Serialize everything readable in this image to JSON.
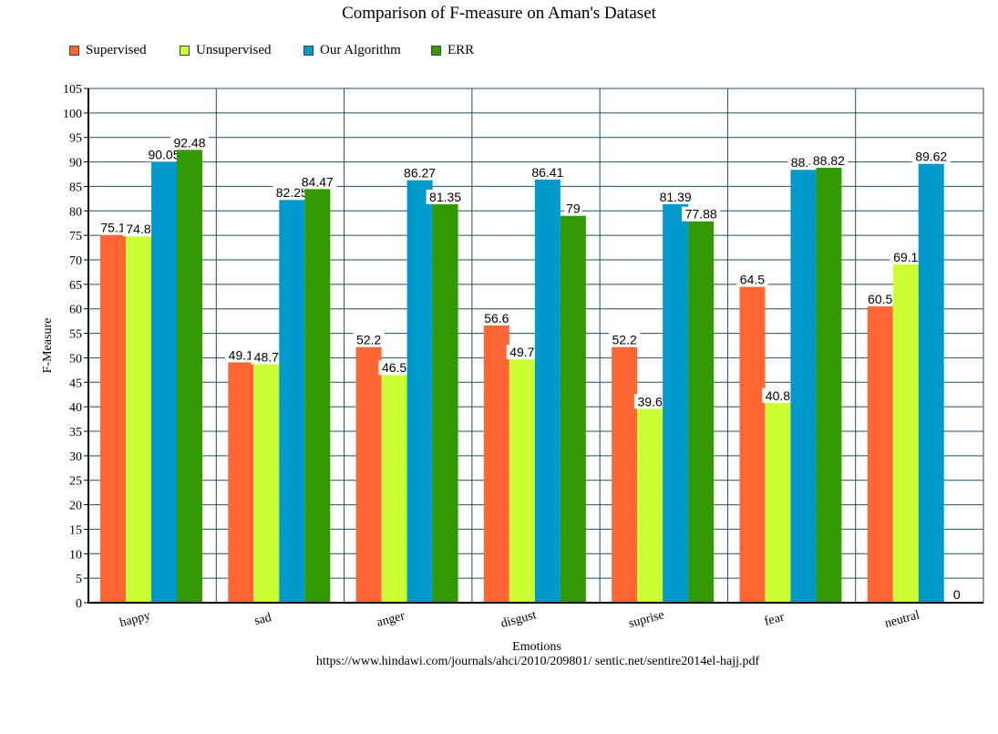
{
  "chart_data": {
    "type": "bar",
    "title": "Comparison of F-measure on Aman's Dataset",
    "xlabel": "Emotions",
    "ylabel": "F-Measure",
    "ylim": [
      0,
      105
    ],
    "ytick_step": 5,
    "categories": [
      "happy",
      "sad",
      "anger",
      "disgust",
      "suprise",
      "fear",
      "neutral"
    ],
    "series": [
      {
        "name": "Supervised",
        "color": "#ff6633",
        "values": [
          75.1,
          49.1,
          52.2,
          56.6,
          52.2,
          64.5,
          60.5
        ],
        "labels": [
          "75.1",
          "49.1",
          "52.2",
          "56.6",
          "52.2",
          "64.5",
          "60.5"
        ]
      },
      {
        "name": "Unsupervised",
        "color": "#ccff33",
        "values": [
          74.8,
          48.7,
          46.5,
          49.7,
          39.6,
          40.8,
          69.1
        ],
        "labels": [
          "74.8",
          "48.7",
          "46.5",
          "49.7",
          "39.6",
          "40.8",
          "69.1"
        ]
      },
      {
        "name": "Our Algorithm",
        "color": "#0099cc",
        "values": [
          90.05,
          82.25,
          86.27,
          86.41,
          81.39,
          88.4,
          89.62
        ],
        "labels": [
          "90.05",
          "82.25",
          "86.27",
          "86.41",
          "81.39",
          "88.4",
          "89.62"
        ]
      },
      {
        "name": "ERR",
        "color": "#339900",
        "values": [
          92.48,
          84.47,
          81.35,
          79,
          77.88,
          88.82,
          0
        ],
        "labels": [
          "92.48",
          "84.47",
          "81.35",
          "79",
          "77.88",
          "88.82",
          "0"
        ]
      }
    ],
    "grid": true,
    "legend_position": "top-left"
  },
  "source_note": "https://www.hindawi.com/journals/ahci/2010/209801/   sentic.net/sentire2014el-hajj.pdf",
  "colors": {
    "gridline": "#1f4e66",
    "axis": "#000000"
  }
}
